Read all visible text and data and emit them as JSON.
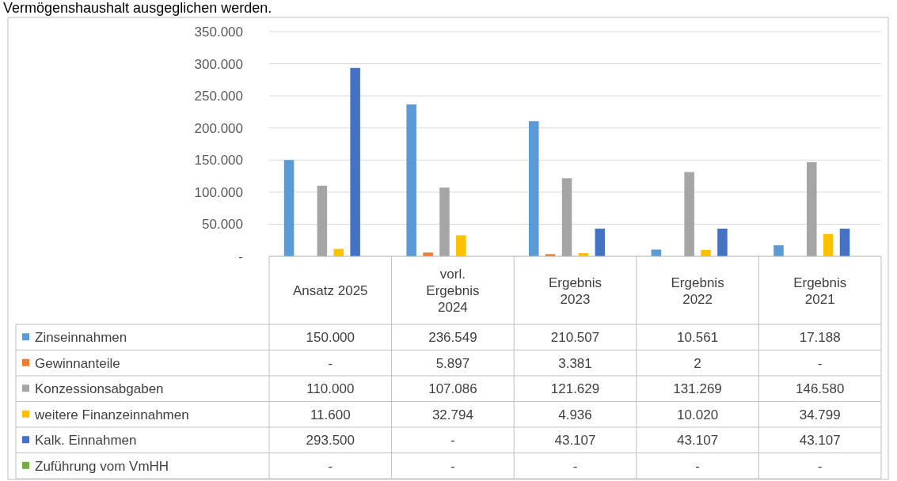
{
  "chart_data": {
    "type": "bar",
    "annotations": [
      "Vermögenshaushalt ausgeglichen werden."
    ],
    "categories": [
      "Ansatz 2025",
      "vorl. Ergebnis 2024",
      "Ergebnis 2023",
      "Ergebnis 2022",
      "Ergebnis 2021"
    ],
    "series": [
      {
        "name": "Zinseinnahmen",
        "color": "#5b9bd5",
        "values": [
          150000,
          236549,
          210507,
          10561,
          17188
        ],
        "value_labels": [
          "150.000",
          "236.549",
          "210.507",
          "10.561",
          "17.188"
        ]
      },
      {
        "name": "Gewinnanteile",
        "color": "#ed7d31",
        "values": [
          0,
          5897,
          3381,
          2,
          0
        ],
        "value_labels": [
          "-",
          "5.897",
          "3.381",
          "2",
          "-"
        ]
      },
      {
        "name": "Konzessionsabgaben",
        "color": "#a5a5a5",
        "values": [
          110000,
          107086,
          121629,
          131269,
          146580
        ],
        "value_labels": [
          "110.000",
          "107.086",
          "121.629",
          "131.269",
          "146.580"
        ]
      },
      {
        "name": "weitere Finanzeinnahmen",
        "color": "#ffc000",
        "values": [
          11600,
          32794,
          4936,
          10020,
          34799
        ],
        "value_labels": [
          "11.600",
          "32.794",
          "4.936",
          "10.020",
          "34.799"
        ]
      },
      {
        "name": "Kalk. Einnahmen",
        "color": "#4472c4",
        "values": [
          293500,
          0,
          43107,
          43107,
          43107
        ],
        "value_labels": [
          "293.500",
          "-",
          "43.107",
          "43.107",
          "43.107"
        ]
      },
      {
        "name": "Zuführung vom VmHH",
        "color": "#70ad47",
        "values": [
          0,
          0,
          0,
          0,
          0
        ],
        "value_labels": [
          "-",
          "-",
          "-",
          "-",
          "-"
        ]
      }
    ],
    "ylim": [
      0,
      350000
    ],
    "yticks": [
      {
        "value": 0,
        "label": "-"
      },
      {
        "value": 50000,
        "label": "50.000"
      },
      {
        "value": 100000,
        "label": "100.000"
      },
      {
        "value": 150000,
        "label": "150.000"
      },
      {
        "value": 200000,
        "label": "200.000"
      },
      {
        "value": 250000,
        "label": "250.000"
      },
      {
        "value": 300000,
        "label": "300.000"
      },
      {
        "value": 350000,
        "label": "350.000"
      }
    ],
    "grid": "y",
    "legend": "bottom left"
  }
}
